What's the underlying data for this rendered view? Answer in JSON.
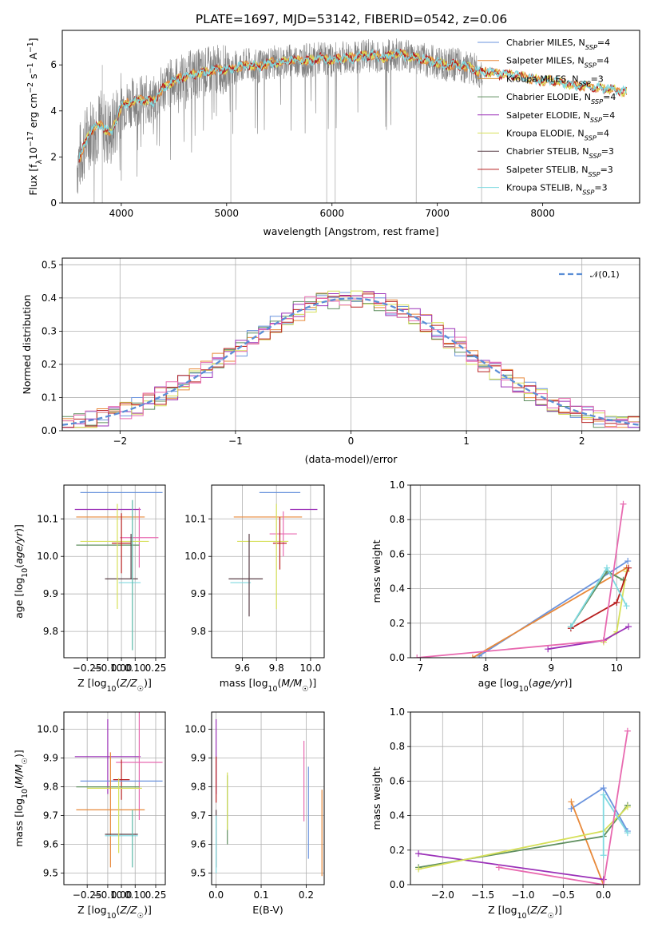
{
  "title": "PLATE=1697, MJD=53142, FIBERID=0542, z=0.06",
  "colors": {
    "Chabrier MILES": "#6a93dd",
    "Salpeter MILES": "#e8893a",
    "Kroupa MILES": "#d68a2e",
    "Chabrier ELODIE": "#5f8f5f",
    "Salpeter ELODIE": "#9b30b8",
    "Kroupa ELODIE": "#d6e05a",
    "Chabrier STELIB": "#5a4048",
    "Salpeter STELIB": "#b82020",
    "Kroupa STELIB": "#7fd9e0",
    "data": "#808080",
    "pink": "#e86ab0",
    "teal": "#5ab8a8",
    "normal": "#5b8ed6"
  },
  "chart_data": [
    {
      "type": "line",
      "name": "spectrum",
      "xlabel": "wavelength [Angstrom, rest frame]",
      "ylabel": "Flux [f_λ10^-17 erg cm^-2 s^-1 A^-1]",
      "xlim": [
        3440,
        8920
      ],
      "ylim": [
        0,
        7.5
      ],
      "xticks": [
        4000,
        5000,
        6000,
        7000,
        8000
      ],
      "yticks": [
        0,
        2,
        4,
        6
      ],
      "grid": false,
      "legend_position": "right",
      "legend": [
        {
          "label": "Chabrier MILES",
          "nssp": "4"
        },
        {
          "label": "Salpeter MILES",
          "nssp": "4"
        },
        {
          "label": "Kroupa MILES",
          "nssp": "3"
        },
        {
          "label": "Chabrier ELODIE",
          "nssp": "4"
        },
        {
          "label": "Salpeter ELODIE",
          "nssp": "4"
        },
        {
          "label": "Kroupa ELODIE",
          "nssp": "4"
        },
        {
          "label": "Chabrier STELIB",
          "nssp": "3"
        },
        {
          "label": "Salpeter STELIB",
          "nssp": "3"
        },
        {
          "label": "Kroupa STELIB",
          "nssp": "3"
        }
      ],
      "model_x": [
        3600,
        3700,
        3800,
        3900,
        4000,
        4100,
        4200,
        4300,
        4400,
        4500,
        4600,
        4700,
        4800,
        4900,
        5000,
        5100,
        5200,
        5300,
        5400,
        5500,
        5600,
        5700,
        5800,
        5900,
        6000,
        6100,
        6200,
        6300,
        6400,
        6500,
        6600,
        6700,
        6800,
        6900,
        7000,
        7100,
        7200,
        7300,
        7400,
        7500,
        7600,
        7700,
        7800,
        7900,
        8000,
        8100,
        8200,
        8300,
        8400,
        8500,
        8600,
        8700,
        8800
      ],
      "model_y": [
        1.9,
        3.1,
        3.4,
        3.0,
        4.2,
        4.4,
        4.5,
        4.4,
        5.0,
        5.3,
        5.5,
        5.6,
        5.7,
        5.8,
        5.8,
        5.9,
        6.0,
        5.9,
        6.1,
        6.1,
        6.2,
        6.2,
        6.2,
        6.3,
        6.2,
        6.3,
        6.3,
        6.4,
        6.4,
        6.3,
        6.5,
        6.4,
        6.3,
        6.2,
        6.1,
        6.0,
        6.0,
        5.9,
        5.7,
        5.7,
        5.6,
        5.6,
        5.5,
        5.4,
        5.3,
        5.3,
        5.2,
        5.1,
        5.1,
        5.0,
        5.0,
        4.9,
        4.8
      ],
      "data_range": [
        3580,
        7430
      ]
    },
    {
      "type": "histogram",
      "name": "residuals",
      "xlabel": "(data-model)/error",
      "ylabel": "Normed distribution",
      "xlim": [
        -2.5,
        2.5
      ],
      "ylim": [
        0,
        0.52
      ],
      "xticks": [
        -2,
        -1,
        0,
        1,
        2
      ],
      "yticks": [
        0.0,
        0.1,
        0.2,
        0.3,
        0.4,
        0.5
      ],
      "grid": true,
      "legend_position": "top-right",
      "legend_label": "𝒩(0,1)",
      "bin_width": 0.1,
      "bin_start": -2.5
    },
    {
      "type": "scatter",
      "name": "age-vs-Z",
      "xlabel": "Z [log10(Z/Z☉)]",
      "ylabel": "age [log10(age/yr)]",
      "xlim": [
        -0.42,
        0.32
      ],
      "ylim": [
        9.73,
        10.19
      ],
      "xticks": [
        -0.25,
        -0.1,
        0.0,
        0.1,
        0.25
      ],
      "yticks": [
        9.8,
        9.9,
        10.0,
        10.1
      ],
      "grid": true,
      "points": [
        {
          "series": "Chabrier MILES",
          "x": 0.0,
          "y": 10.17,
          "xerr": 0.3,
          "yerr": 0.0
        },
        {
          "series": "Salpeter ELODIE",
          "x": -0.1,
          "y": 10.125,
          "xerr": 0.24,
          "yerr": 0.0
        },
        {
          "series": "Salpeter MILES",
          "x": -0.08,
          "y": 10.105,
          "xerr": 0.25,
          "yerr": 0.0
        },
        {
          "series": "pink",
          "x": 0.13,
          "y": 10.05,
          "xerr": 0.14,
          "yerr": 0.08
        },
        {
          "series": "Kroupa ELODIE",
          "x": -0.05,
          "y": 10.04,
          "xerr": 0.25,
          "yerr": 0.0
        },
        {
          "series": "Chabrier ELODIE",
          "x": -0.1,
          "y": 10.03,
          "xerr": 0.23,
          "yerr": 0.0
        },
        {
          "series": "Salpeter STELIB",
          "x": 0.0,
          "y": 10.035,
          "xerr": 0.07,
          "yerr": 0.08
        },
        {
          "series": "Chabrier STELIB",
          "x": 0.07,
          "y": 10.0,
          "xerr": 0.0,
          "yerr": 0.06
        },
        {
          "series": "Chabrier STELIB",
          "x": 0.0,
          "y": 9.94,
          "xerr": 0.12,
          "yerr": 0.0
        },
        {
          "series": "Kroupa STELIB",
          "x": 0.06,
          "y": 9.93,
          "xerr": 0.08,
          "yerr": 0.0
        },
        {
          "series": "Kroupa ELODIE",
          "x": -0.03,
          "y": 10.0,
          "xerr": 0.0,
          "yerr": 0.14
        },
        {
          "series": "teal",
          "x": 0.08,
          "y": 9.95,
          "xerr": 0.0,
          "yerr": 0.2
        }
      ]
    },
    {
      "type": "scatter",
      "name": "age-vs-mass",
      "xlabel": "mass [log10(M/M☉)]",
      "ylabel": "",
      "xlim": [
        9.42,
        10.08
      ],
      "ylim": [
        9.73,
        10.19
      ],
      "xticks": [
        9.6,
        9.8,
        10.0
      ],
      "yticks": [
        9.8,
        9.9,
        10.0,
        10.1
      ],
      "grid": true,
      "points": [
        {
          "series": "Chabrier MILES",
          "x": 9.82,
          "y": 10.17,
          "xerr": 0.12,
          "yerr": 0.0
        },
        {
          "series": "Salpeter ELODIE",
          "x": 9.96,
          "y": 10.125,
          "xerr": 0.08,
          "yerr": 0.0
        },
        {
          "series": "Salpeter MILES",
          "x": 9.75,
          "y": 10.105,
          "xerr": 0.2,
          "yerr": 0.0
        },
        {
          "series": "pink",
          "x": 9.84,
          "y": 10.06,
          "xerr": 0.08,
          "yerr": 0.06
        },
        {
          "series": "Kroupa ELODIE",
          "x": 9.72,
          "y": 10.04,
          "xerr": 0.15,
          "yerr": 0.0
        },
        {
          "series": "Salpeter STELIB",
          "x": 9.82,
          "y": 10.035,
          "xerr": 0.04,
          "yerr": 0.07
        },
        {
          "series": "Chabrier STELIB",
          "x": 9.62,
          "y": 9.94,
          "xerr": 0.1,
          "yerr": 0.0
        },
        {
          "series": "Kroupa STELIB",
          "x": 9.59,
          "y": 9.93,
          "xerr": 0.06,
          "yerr": 0.0
        },
        {
          "series": "Kroupa ELODIE",
          "x": 9.8,
          "y": 10.0,
          "xerr": 0.0,
          "yerr": 0.14
        },
        {
          "series": "Chabrier STELIB",
          "x": 9.64,
          "y": 9.95,
          "xerr": 0.0,
          "yerr": 0.11
        }
      ]
    },
    {
      "type": "line",
      "name": "mass-weight-vs-age",
      "xlabel": "age [log10(age/yr)]",
      "ylabel": "mass weight",
      "xlim": [
        6.85,
        10.35
      ],
      "ylim": [
        0,
        1
      ],
      "xticks": [
        7,
        8,
        9,
        10
      ],
      "yticks": [
        0.0,
        0.2,
        0.4,
        0.6,
        0.8,
        1.0
      ],
      "grid": true,
      "series": [
        {
          "name": "Chabrier MILES",
          "x": [
            7.9,
            10.17
          ],
          "y": [
            0.01,
            0.56
          ]
        },
        {
          "name": "Salpeter MILES",
          "x": [
            7.8,
            10.15
          ],
          "y": [
            0.0,
            0.52
          ]
        },
        {
          "name": "Chabrier ELODIE",
          "x": [
            9.3,
            9.85,
            10.1
          ],
          "y": [
            0.18,
            0.5,
            0.45
          ]
        },
        {
          "name": "Kroupa ELODIE",
          "x": [
            9.8,
            10.0,
            10.15
          ],
          "y": [
            0.09,
            0.15,
            0.5
          ]
        },
        {
          "name": "Salpeter ELODIE",
          "x": [
            8.95,
            9.8,
            10.18
          ],
          "y": [
            0.05,
            0.1,
            0.18
          ]
        },
        {
          "name": "Salpeter STELIB",
          "x": [
            9.3,
            10.0,
            10.18
          ],
          "y": [
            0.17,
            0.32,
            0.52
          ]
        },
        {
          "name": "Kroupa STELIB",
          "x": [
            9.3,
            9.85,
            10.15
          ],
          "y": [
            0.18,
            0.52,
            0.3
          ]
        },
        {
          "name": "pink",
          "x": [
            6.95,
            9.8,
            10.1
          ],
          "y": [
            0.0,
            0.1,
            0.89
          ]
        }
      ]
    },
    {
      "type": "scatter",
      "name": "mass-vs-Z",
      "xlabel": "Z [log10(Z/Z☉)]",
      "ylabel": "mass [log10(M/M☉)]",
      "xlim": [
        -0.42,
        0.32
      ],
      "ylim": [
        9.46,
        10.06
      ],
      "xticks": [
        -0.25,
        -0.1,
        0.0,
        0.1,
        0.25
      ],
      "yticks": [
        9.5,
        9.6,
        9.7,
        9.8,
        9.9,
        10.0
      ],
      "grid": true,
      "points": [
        {
          "series": "Salpeter ELODIE",
          "x": -0.1,
          "y": 9.905,
          "xerr": 0.24,
          "yerr": 0.13
        },
        {
          "series": "pink",
          "x": 0.13,
          "y": 9.885,
          "xerr": 0.17,
          "yerr": 0.2
        },
        {
          "series": "Salpeter STELIB",
          "x": 0.0,
          "y": 9.825,
          "xerr": 0.06,
          "yerr": 0.07
        },
        {
          "series": "Chabrier MILES",
          "x": 0.0,
          "y": 9.82,
          "xerr": 0.3,
          "yerr": 0.0
        },
        {
          "series": "Chabrier ELODIE",
          "x": -0.1,
          "y": 9.8,
          "xerr": 0.23,
          "yerr": 0.0
        },
        {
          "series": "Kroupa ELODIE",
          "x": -0.05,
          "y": 9.795,
          "xerr": 0.2,
          "yerr": 0.0
        },
        {
          "series": "Salpeter MILES",
          "x": -0.08,
          "y": 9.72,
          "xerr": 0.25,
          "yerr": 0.2
        },
        {
          "series": "Chabrier STELIB",
          "x": 0.0,
          "y": 9.635,
          "xerr": 0.12,
          "yerr": 0.0
        },
        {
          "series": "Kroupa STELIB",
          "x": 0.0,
          "y": 9.63,
          "xerr": 0.12,
          "yerr": 0.0
        },
        {
          "series": "Kroupa ELODIE",
          "x": -0.02,
          "y": 9.7,
          "xerr": 0.0,
          "yerr": 0.13
        },
        {
          "series": "teal",
          "x": 0.08,
          "y": 9.62,
          "xerr": 0.0,
          "yerr": 0.1
        }
      ]
    },
    {
      "type": "scatter",
      "name": "mass-vs-EBV",
      "xlabel": "E(B-V)",
      "ylabel": "",
      "xlim": [
        -0.01,
        0.24
      ],
      "ylim": [
        9.46,
        10.06
      ],
      "xticks": [
        0.0,
        0.1,
        0.2
      ],
      "yticks": [
        9.5,
        9.6,
        9.7,
        9.8,
        9.9,
        10.0
      ],
      "grid": true,
      "points": [
        {
          "series": "Salpeter ELODIE",
          "x": 0.0,
          "y": 9.905,
          "yerr": 0.13
        },
        {
          "series": "Salpeter STELIB",
          "x": 0.0,
          "y": 9.825,
          "yerr": 0.08
        },
        {
          "series": "Chabrier STELIB",
          "x": 0.0,
          "y": 9.62,
          "yerr": 0.1
        },
        {
          "series": "Kroupa STELIB",
          "x": 0.0,
          "y": 9.6,
          "yerr": 0.1
        },
        {
          "series": "Chabrier ELODIE",
          "x": 0.025,
          "y": 9.72,
          "yerr": 0.12
        },
        {
          "series": "Kroupa ELODIE",
          "x": 0.025,
          "y": 9.75,
          "yerr": 0.1
        },
        {
          "series": "pink",
          "x": 0.195,
          "y": 9.82,
          "yerr": 0.14
        },
        {
          "series": "Chabrier MILES",
          "x": 0.205,
          "y": 9.71,
          "yerr": 0.16
        },
        {
          "series": "Salpeter MILES",
          "x": 0.235,
          "y": 9.64,
          "yerr": 0.15
        }
      ]
    },
    {
      "type": "line",
      "name": "mass-weight-vs-Z",
      "xlabel": "Z [log10(Z/Z☉)]",
      "ylabel": "mass weight",
      "xlim": [
        -2.4,
        0.45
      ],
      "ylim": [
        0,
        1
      ],
      "xticks": [
        -2.0,
        -1.5,
        -1.0,
        -0.5,
        0.0
      ],
      "yticks": [
        0.0,
        0.2,
        0.4,
        0.6,
        0.8,
        1.0
      ],
      "grid": true,
      "series": [
        {
          "name": "Chabrier MILES",
          "x": [
            -0.4,
            0.0,
            0.3
          ],
          "y": [
            0.44,
            0.56,
            0.31
          ]
        },
        {
          "name": "Salpeter MILES",
          "x": [
            -0.4,
            0.0
          ],
          "y": [
            0.48,
            0.0
          ]
        },
        {
          "name": "Salpeter ELODIE",
          "x": [
            -2.3,
            0.0
          ],
          "y": [
            0.18,
            0.03
          ]
        },
        {
          "name": "Chabrier ELODIE",
          "x": [
            -2.3,
            0.0,
            0.3
          ],
          "y": [
            0.1,
            0.28,
            0.46
          ]
        },
        {
          "name": "Kroupa ELODIE",
          "x": [
            -2.3,
            0.0,
            0.3
          ],
          "y": [
            0.09,
            0.31,
            0.45
          ]
        },
        {
          "name": "Kroupa STELIB",
          "x": [
            0.0,
            0.0,
            0.3
          ],
          "y": [
            0.17,
            0.52,
            0.3
          ]
        },
        {
          "name": "pink",
          "x": [
            -1.3,
            0.0,
            0.3
          ],
          "y": [
            0.1,
            0.0,
            0.89
          ]
        }
      ]
    }
  ]
}
